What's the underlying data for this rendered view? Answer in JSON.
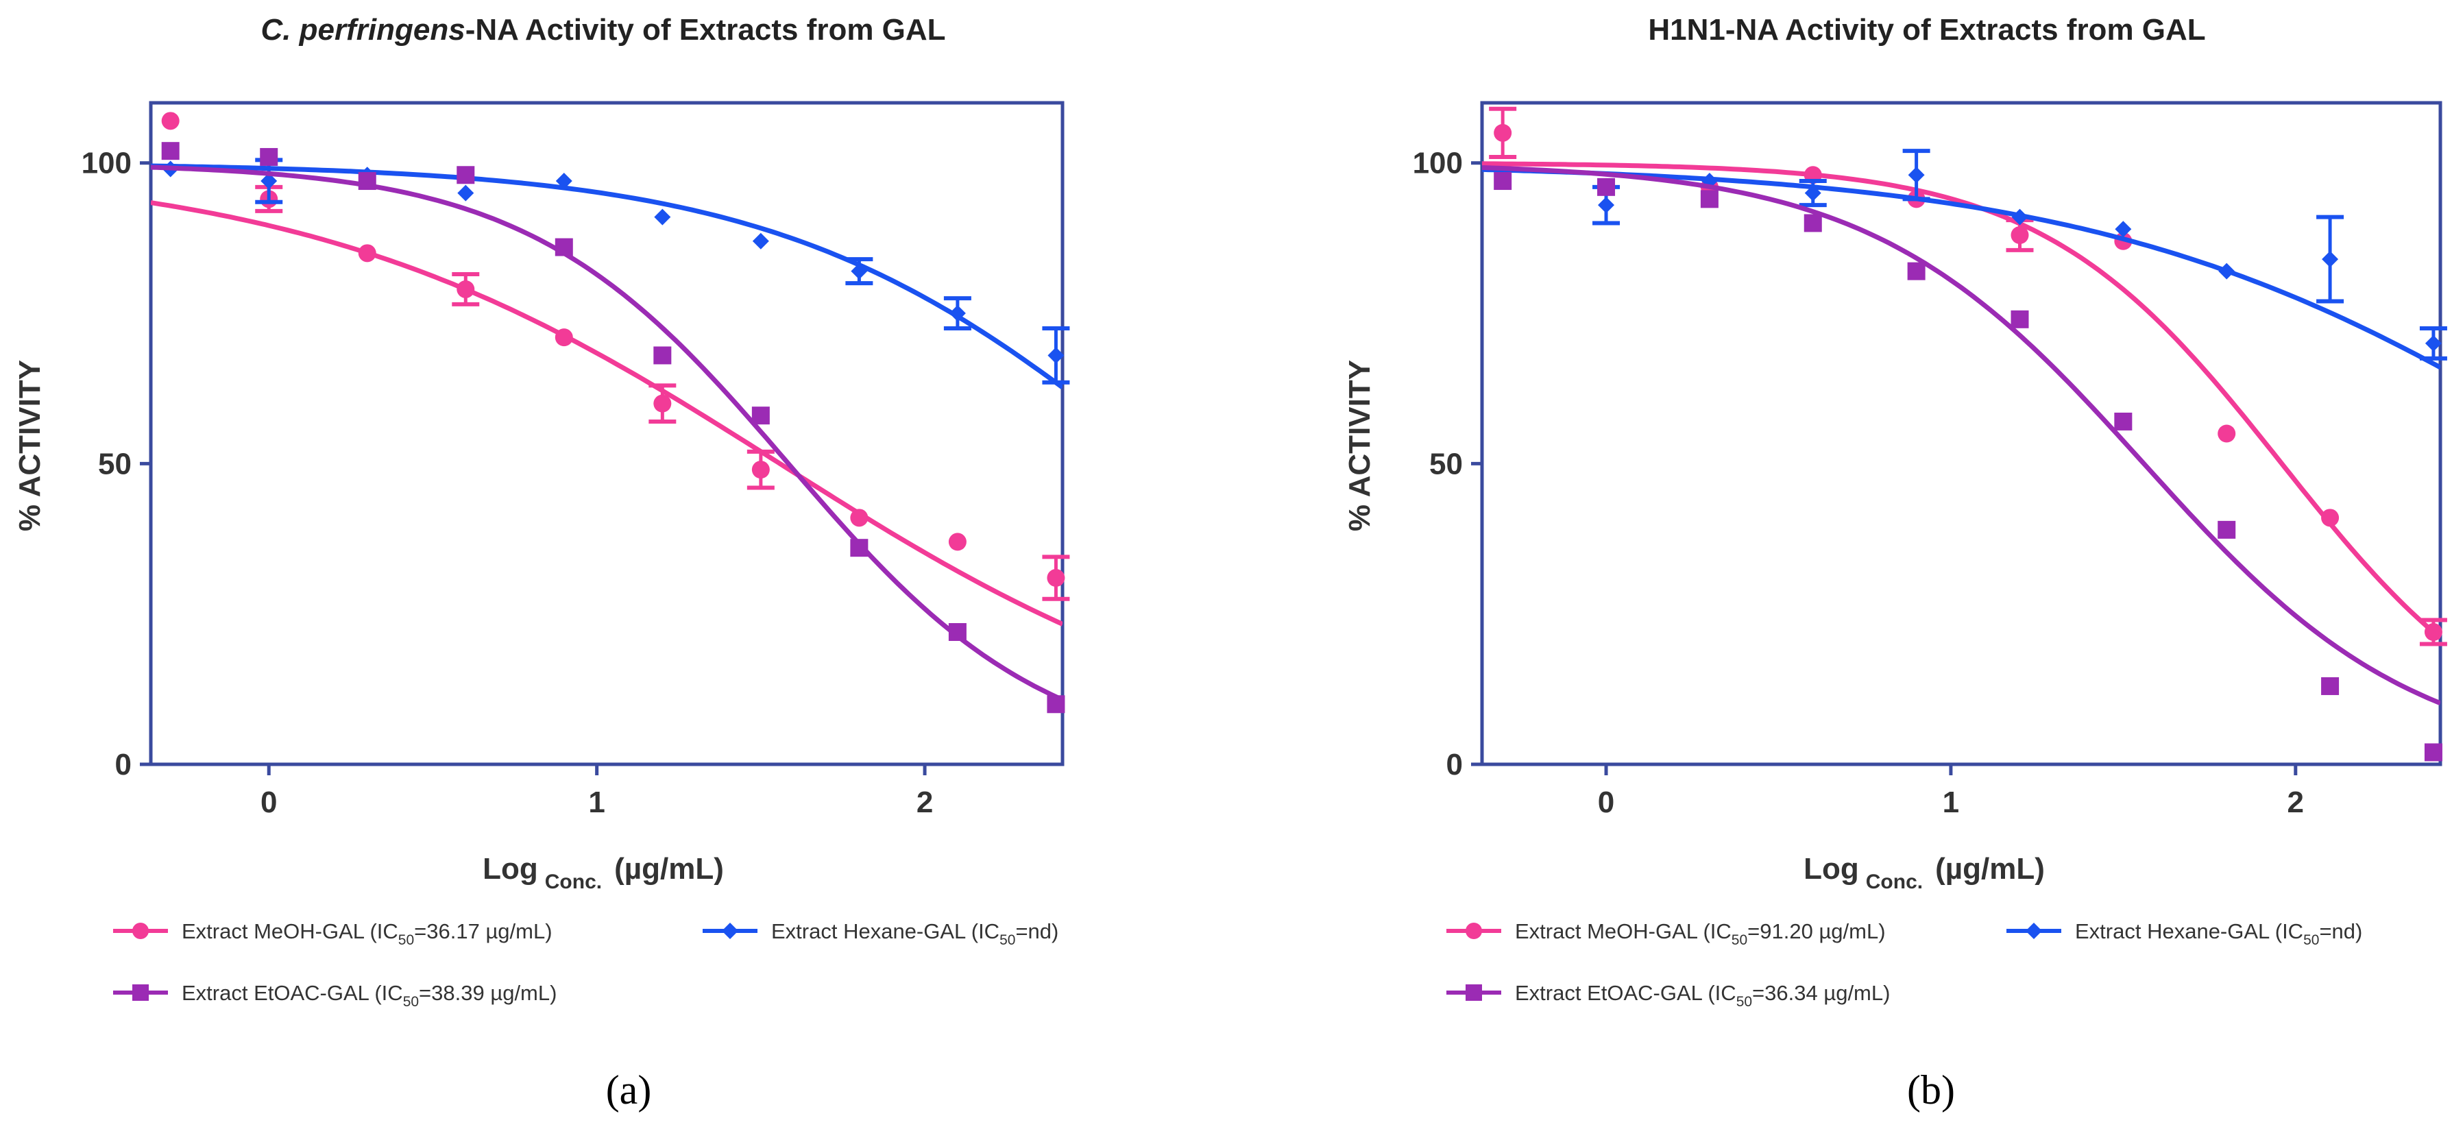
{
  "chart_data": [
    {
      "type": "scatter",
      "panel_label": "(a)",
      "title_italic": "C. perfringens",
      "title_rest": "-NA Activity of Extracts from GAL",
      "ylabel": "% ACTIVITY",
      "xlabel_main": "Log",
      "xlabel_sub": "Conc.",
      "xlabel_unit": "(µg/mL)",
      "xlim": [
        -0.36,
        2.42
      ],
      "ylim": [
        0,
        110
      ],
      "xticks": [
        0,
        1,
        2
      ],
      "yticks": [
        0,
        50,
        100
      ],
      "series": [
        {
          "name": "Extract MeOH-GAL",
          "legend_prefix": "Extract MeOH-GAL (IC",
          "legend_sub": "50",
          "legend_suffix": "=36.17 µg/mL)",
          "color": "#f23b97",
          "marker": "circle",
          "points": [
            {
              "x": -0.3,
              "y": 107
            },
            {
              "x": 0.0,
              "y": 94,
              "err": 2
            },
            {
              "x": 0.3,
              "y": 85
            },
            {
              "x": 0.6,
              "y": 79,
              "err": 2.5
            },
            {
              "x": 0.9,
              "y": 71
            },
            {
              "x": 1.2,
              "y": 60,
              "err": 3
            },
            {
              "x": 1.5,
              "y": 49,
              "err": 3
            },
            {
              "x": 1.8,
              "y": 41
            },
            {
              "x": 2.1,
              "y": 37
            },
            {
              "x": 2.4,
              "y": 31,
              "err": 3.5
            }
          ],
          "fit": {
            "top": 100,
            "bottom": 0,
            "logEC50": 1.5583,
            "hill": 0.6
          }
        },
        {
          "name": "Extract Hexane-GAL",
          "legend_prefix": "Extract Hexane-GAL (IC",
          "legend_sub": "50",
          "legend_suffix": "=nd)",
          "color": "#1a52f0",
          "marker": "diamond",
          "points": [
            {
              "x": -0.3,
              "y": 99
            },
            {
              "x": 0.0,
              "y": 97,
              "err": 3.5
            },
            {
              "x": 0.3,
              "y": 98
            },
            {
              "x": 0.6,
              "y": 95
            },
            {
              "x": 0.9,
              "y": 97
            },
            {
              "x": 1.2,
              "y": 91
            },
            {
              "x": 1.5,
              "y": 87
            },
            {
              "x": 1.8,
              "y": 82,
              "err": 2
            },
            {
              "x": 2.1,
              "y": 75,
              "err": 2.5
            },
            {
              "x": 2.4,
              "y": 68,
              "err": 4.5
            }
          ],
          "fit": {
            "top": 100,
            "bottom": 0,
            "logEC50": 2.72,
            "hill": 0.75
          }
        },
        {
          "name": "Extract EtOAC-GAL",
          "legend_prefix": "Extract EtOAC-GAL (IC",
          "legend_sub": "50",
          "legend_suffix": "=38.39 µg/mL)",
          "color": "#9b2bb4",
          "marker": "square",
          "points": [
            {
              "x": -0.3,
              "y": 102
            },
            {
              "x": 0.0,
              "y": 101
            },
            {
              "x": 0.3,
              "y": 97
            },
            {
              "x": 0.6,
              "y": 98
            },
            {
              "x": 0.9,
              "y": 86
            },
            {
              "x": 1.2,
              "y": 68
            },
            {
              "x": 1.5,
              "y": 58
            },
            {
              "x": 1.8,
              "y": 36
            },
            {
              "x": 2.1,
              "y": 22
            },
            {
              "x": 2.4,
              "y": 10
            }
          ],
          "fit": {
            "top": 100,
            "bottom": 0,
            "logEC50": 1.5842,
            "hill": 1.1
          }
        }
      ]
    },
    {
      "type": "scatter",
      "panel_label": "(b)",
      "title_italic": "",
      "title_rest": "H1N1-NA Activity of Extracts from GAL",
      "ylabel": "% ACTIVITY",
      "xlabel_main": "Log",
      "xlabel_sub": "Conc.",
      "xlabel_unit": "(µg/mL)",
      "xlim": [
        -0.36,
        2.42
      ],
      "ylim": [
        0,
        110
      ],
      "xticks": [
        0,
        1,
        2
      ],
      "yticks": [
        0,
        50,
        100
      ],
      "series": [
        {
          "name": "Extract MeOH-GAL",
          "legend_prefix": "Extract MeOH-GAL (IC",
          "legend_sub": "50",
          "legend_suffix": "=91.20 µg/mL)",
          "color": "#f23b97",
          "marker": "circle",
          "points": [
            {
              "x": -0.3,
              "y": 105,
              "err": 4
            },
            {
              "x": 0.0,
              "y": 96
            },
            {
              "x": 0.3,
              "y": 96
            },
            {
              "x": 0.6,
              "y": 98
            },
            {
              "x": 0.9,
              "y": 94
            },
            {
              "x": 1.2,
              "y": 88,
              "err": 2.5
            },
            {
              "x": 1.5,
              "y": 87
            },
            {
              "x": 1.8,
              "y": 55
            },
            {
              "x": 2.1,
              "y": 41
            },
            {
              "x": 2.4,
              "y": 22,
              "err": 2
            }
          ],
          "fit": {
            "top": 100,
            "bottom": 0,
            "logEC50": 1.96,
            "hill": 1.25
          }
        },
        {
          "name": "Extract Hexane-GAL",
          "legend_prefix": "Extract Hexane-GAL (IC",
          "legend_sub": "50",
          "legend_suffix": "=nd)",
          "color": "#1a52f0",
          "marker": "diamond",
          "points": [
            {
              "x": -0.3,
              "y": 98
            },
            {
              "x": 0.0,
              "y": 93,
              "err": 3
            },
            {
              "x": 0.3,
              "y": 97
            },
            {
              "x": 0.6,
              "y": 95,
              "err": 2
            },
            {
              "x": 0.9,
              "y": 98,
              "err": 4
            },
            {
              "x": 1.2,
              "y": 91
            },
            {
              "x": 1.5,
              "y": 89
            },
            {
              "x": 1.8,
              "y": 82
            },
            {
              "x": 2.1,
              "y": 84,
              "err": 7
            },
            {
              "x": 2.4,
              "y": 70,
              "err": 2.5
            }
          ],
          "fit": {
            "top": 100,
            "bottom": 0,
            "logEC50": 2.9,
            "hill": 0.6
          }
        },
        {
          "name": "Extract EtOAC-GAL",
          "legend_prefix": "Extract EtOAC-GAL (IC",
          "legend_sub": "50",
          "legend_suffix": "=36.34 µg/mL)",
          "color": "#9b2bb4",
          "marker": "square",
          "points": [
            {
              "x": -0.3,
              "y": 97
            },
            {
              "x": 0.0,
              "y": 96
            },
            {
              "x": 0.3,
              "y": 94
            },
            {
              "x": 0.6,
              "y": 90
            },
            {
              "x": 0.9,
              "y": 82
            },
            {
              "x": 1.2,
              "y": 74
            },
            {
              "x": 1.5,
              "y": 57
            },
            {
              "x": 1.8,
              "y": 39
            },
            {
              "x": 2.1,
              "y": 13
            },
            {
              "x": 2.4,
              "y": 2
            }
          ],
          "fit": {
            "top": 100,
            "bottom": 0,
            "logEC50": 1.56,
            "hill": 1.1
          }
        }
      ]
    }
  ]
}
